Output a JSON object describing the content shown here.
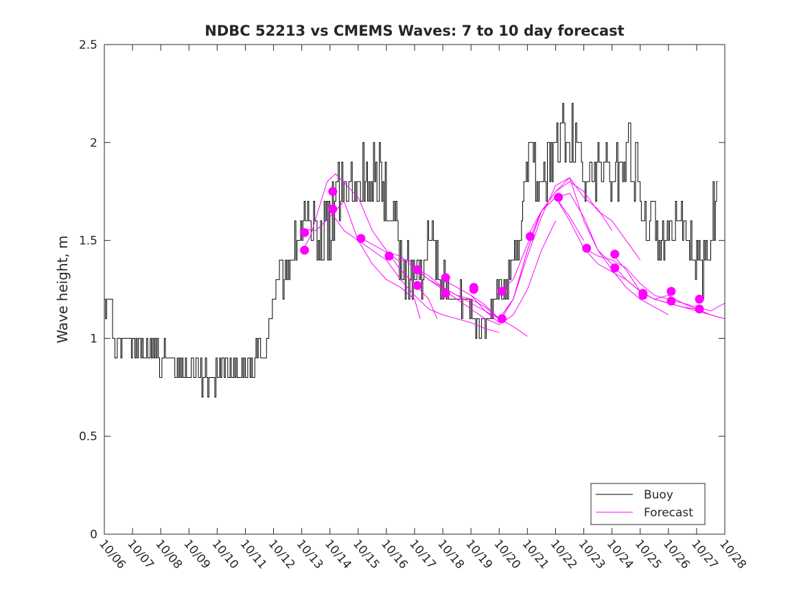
{
  "chart_data": {
    "type": "line",
    "title": "NDBC 52213 vs CMEMS Waves: 7 to 10 day forecast",
    "xlabel": "",
    "ylabel": "Wave height, m",
    "xlim": [
      0,
      22
    ],
    "ylim": [
      0,
      2.5
    ],
    "x_tick_labels": [
      "10/06",
      "10/07",
      "10/08",
      "10/09",
      "10/10",
      "10/11",
      "10/12",
      "10/13",
      "10/14",
      "10/15",
      "10/16",
      "10/17",
      "10/18",
      "10/19",
      "10/20",
      "10/21",
      "10/22",
      "10/23",
      "10/24",
      "10/25",
      "10/26",
      "10/27",
      "10/28"
    ],
    "y_ticks": [
      0,
      0.5,
      1,
      1.5,
      2,
      2.5
    ],
    "y_tick_labels": [
      "0",
      "0.5",
      "1",
      "1.5",
      "2",
      "2.5"
    ],
    "x_units": "days since 10/06 00:00",
    "legend": {
      "position": "bottom-right",
      "entries": [
        {
          "label": "Buoy",
          "color": "#000000"
        },
        {
          "label": "Forecast",
          "color": "#ff00ff"
        }
      ]
    },
    "colors": {
      "buoy": "#000000",
      "forecast": "#ff00ff",
      "axes": "#262626"
    },
    "buoy_anchors": [
      [
        0,
        1.2
      ],
      [
        0.2,
        1.2
      ],
      [
        0.35,
        0.95
      ],
      [
        0.6,
        0.95
      ],
      [
        0.9,
        1.0
      ],
      [
        1.2,
        0.95
      ],
      [
        1.5,
        0.9
      ],
      [
        1.8,
        0.95
      ],
      [
        2.0,
        0.9
      ],
      [
        2.3,
        0.87
      ],
      [
        2.6,
        0.85
      ],
      [
        3.0,
        0.82
      ],
      [
        3.3,
        0.82
      ],
      [
        3.5,
        0.8
      ],
      [
        3.7,
        0.78
      ],
      [
        4.0,
        0.82
      ],
      [
        4.4,
        0.85
      ],
      [
        4.8,
        0.85
      ],
      [
        5.2,
        0.85
      ],
      [
        5.6,
        0.95
      ],
      [
        5.8,
        1.05
      ],
      [
        6.0,
        1.2
      ],
      [
        6.3,
        1.35
      ],
      [
        6.6,
        1.45
      ],
      [
        6.9,
        1.55
      ],
      [
        7.2,
        1.55
      ],
      [
        7.5,
        1.55
      ],
      [
        7.8,
        1.5
      ],
      [
        8.0,
        1.55
      ],
      [
        8.3,
        1.75
      ],
      [
        8.6,
        1.8
      ],
      [
        9.0,
        1.8
      ],
      [
        9.4,
        1.85
      ],
      [
        9.7,
        1.85
      ],
      [
        10.0,
        1.7
      ],
      [
        10.3,
        1.55
      ],
      [
        10.6,
        1.35
      ],
      [
        11.0,
        1.3
      ],
      [
        11.3,
        1.4
      ],
      [
        11.6,
        1.45
      ],
      [
        11.9,
        1.35
      ],
      [
        12.2,
        1.25
      ],
      [
        12.6,
        1.2
      ],
      [
        12.9,
        1.15
      ],
      [
        13.1,
        1.05
      ],
      [
        13.3,
        1.02
      ],
      [
        13.6,
        1.1
      ],
      [
        14.0,
        1.25
      ],
      [
        14.2,
        1.3
      ],
      [
        14.4,
        1.35
      ],
      [
        14.6,
        1.45
      ],
      [
        14.8,
        1.65
      ],
      [
        15.0,
        1.85
      ],
      [
        15.3,
        1.85
      ],
      [
        15.6,
        1.85
      ],
      [
        16.0,
        1.95
      ],
      [
        16.3,
        2.05
      ],
      [
        16.6,
        2.0
      ],
      [
        17.0,
        1.8
      ],
      [
        17.3,
        1.8
      ],
      [
        17.6,
        1.9
      ],
      [
        18.0,
        1.8
      ],
      [
        18.3,
        1.9
      ],
      [
        18.6,
        2.0
      ],
      [
        18.9,
        1.8
      ],
      [
        19.2,
        1.6
      ],
      [
        19.5,
        1.55
      ],
      [
        19.8,
        1.5
      ],
      [
        20.2,
        1.5
      ],
      [
        20.5,
        1.5
      ],
      [
        20.8,
        1.45
      ],
      [
        21.0,
        1.4
      ],
      [
        21.2,
        1.3
      ],
      [
        21.5,
        1.55
      ],
      [
        21.75,
        1.8
      ]
    ],
    "forecast_series": [
      {
        "name": "Forecast 1",
        "x": [
          7.0,
          7.5,
          8.0,
          8.5,
          9.0,
          9.5,
          10.0,
          10.5,
          11.0,
          11.2
        ],
        "y": [
          1.56,
          1.55,
          1.62,
          1.7,
          1.5,
          1.38,
          1.3,
          1.26,
          1.2,
          1.1
        ]
      },
      {
        "name": "Forecast 2",
        "x": [
          7.0,
          7.3,
          7.6,
          7.9,
          8.2,
          8.6,
          9.0,
          9.5,
          10.0,
          10.5,
          11.0,
          11.5,
          11.8
        ],
        "y": [
          1.44,
          1.52,
          1.66,
          1.8,
          1.84,
          1.78,
          1.72,
          1.55,
          1.45,
          1.35,
          1.28,
          1.2,
          1.1
        ]
      },
      {
        "name": "Forecast 3",
        "x": [
          8.0,
          8.5,
          9.0,
          9.5,
          10.0,
          10.5,
          11.0,
          11.5,
          12.0,
          12.5,
          13.0,
          13.5,
          14.0
        ],
        "y": [
          1.65,
          1.55,
          1.5,
          1.45,
          1.4,
          1.3,
          1.22,
          1.15,
          1.12,
          1.1,
          1.08,
          1.05,
          1.03
        ]
      },
      {
        "name": "Forecast 4",
        "x": [
          9.0,
          9.5,
          10.0,
          10.5,
          11.0,
          11.5,
          12.0,
          12.5,
          13.0,
          13.5,
          14.0,
          14.5,
          15.0
        ],
        "y": [
          1.52,
          1.48,
          1.44,
          1.42,
          1.36,
          1.3,
          1.26,
          1.22,
          1.18,
          1.14,
          1.1,
          1.06,
          1.01
        ]
      },
      {
        "name": "Forecast 5",
        "x": [
          10.0,
          10.4,
          10.8,
          11.1,
          11.5,
          12.0,
          12.5,
          13.0,
          13.5,
          14.0,
          14.5,
          15.0,
          15.5,
          16.0
        ],
        "y": [
          1.44,
          1.4,
          1.4,
          1.35,
          1.3,
          1.25,
          1.2,
          1.15,
          1.1,
          1.07,
          1.12,
          1.25,
          1.45,
          1.6
        ]
      },
      {
        "name": "Forecast 6",
        "x": [
          11.0,
          11.5,
          12.0,
          12.5,
          13.0,
          13.5,
          14.0,
          14.5,
          15.0,
          15.5,
          16.0,
          16.5,
          17.0
        ],
        "y": [
          1.36,
          1.32,
          1.26,
          1.22,
          1.2,
          1.16,
          1.1,
          1.2,
          1.45,
          1.65,
          1.72,
          1.62,
          1.5
        ]
      },
      {
        "name": "Forecast 7",
        "x": [
          12.0,
          12.5,
          13.0,
          13.5,
          14.0,
          14.5,
          15.0,
          15.5,
          16.0,
          16.5,
          17.0,
          17.5,
          18.0
        ],
        "y": [
          1.3,
          1.26,
          1.22,
          1.17,
          1.1,
          1.2,
          1.42,
          1.62,
          1.78,
          1.82,
          1.72,
          1.66,
          1.55
        ]
      },
      {
        "name": "Forecast 8",
        "x": [
          13.0,
          13.5,
          14.0,
          14.5,
          15.0,
          15.5,
          16.0,
          16.5,
          17.0,
          17.5,
          18.0,
          18.5,
          19.0
        ],
        "y": [
          1.22,
          1.14,
          1.08,
          1.2,
          1.45,
          1.65,
          1.75,
          1.8,
          1.75,
          1.65,
          1.6,
          1.5,
          1.4
        ]
      },
      {
        "name": "Forecast 9",
        "x": [
          14.0,
          14.5,
          15.0,
          15.5,
          16.0,
          16.5,
          17.0,
          17.5,
          18.0,
          18.5,
          19.0,
          19.5,
          20.0
        ],
        "y": [
          1.24,
          1.3,
          1.48,
          1.65,
          1.75,
          1.82,
          1.6,
          1.45,
          1.35,
          1.26,
          1.2,
          1.16,
          1.12
        ]
      },
      {
        "name": "Forecast 10",
        "x": [
          15.0,
          15.5,
          16.0,
          16.5,
          17.0,
          17.5,
          18.0,
          18.5,
          19.0,
          19.5,
          20.0,
          20.5,
          21.0
        ],
        "y": [
          1.52,
          1.65,
          1.72,
          1.74,
          1.62,
          1.45,
          1.38,
          1.3,
          1.24,
          1.2,
          1.18,
          1.16,
          1.15
        ]
      },
      {
        "name": "Forecast 11",
        "x": [
          16.0,
          16.5,
          17.0,
          17.5,
          18.0,
          18.5,
          19.0,
          19.5,
          20.0,
          20.5,
          21.0,
          21.5,
          22.0
        ],
        "y": [
          1.72,
          1.6,
          1.46,
          1.38,
          1.34,
          1.3,
          1.24,
          1.2,
          1.18,
          1.16,
          1.14,
          1.12,
          1.1
        ]
      },
      {
        "name": "Forecast 12",
        "x": [
          17.0,
          17.5,
          18.0,
          18.5,
          19.0,
          19.5,
          20.0,
          20.5,
          21.0,
          21.5,
          22.0
        ],
        "y": [
          1.46,
          1.42,
          1.4,
          1.36,
          1.28,
          1.22,
          1.2,
          1.18,
          1.15,
          1.12,
          1.1
        ]
      },
      {
        "name": "Forecast 13",
        "x": [
          18.0,
          18.5,
          19.0,
          19.5,
          20.0,
          20.5,
          21.0,
          21.5,
          22.0
        ],
        "y": [
          1.43,
          1.35,
          1.24,
          1.2,
          1.22,
          1.18,
          1.16,
          1.14,
          1.18
        ]
      }
    ],
    "forecast_markers": [
      {
        "x": 7.1,
        "y": 1.54
      },
      {
        "x": 7.1,
        "y": 1.45
      },
      {
        "x": 8.1,
        "y": 1.75
      },
      {
        "x": 8.1,
        "y": 1.66
      },
      {
        "x": 9.1,
        "y": 1.51
      },
      {
        "x": 10.1,
        "y": 1.42
      },
      {
        "x": 11.1,
        "y": 1.35
      },
      {
        "x": 11.1,
        "y": 1.27
      },
      {
        "x": 12.1,
        "y": 1.31
      },
      {
        "x": 12.1,
        "y": 1.23
      },
      {
        "x": 13.1,
        "y": 1.26
      },
      {
        "x": 13.1,
        "y": 1.25
      },
      {
        "x": 14.1,
        "y": 1.24
      },
      {
        "x": 14.1,
        "y": 1.1
      },
      {
        "x": 15.1,
        "y": 1.52
      },
      {
        "x": 16.1,
        "y": 1.72
      },
      {
        "x": 17.1,
        "y": 1.46
      },
      {
        "x": 18.1,
        "y": 1.43
      },
      {
        "x": 18.1,
        "y": 1.36
      },
      {
        "x": 19.1,
        "y": 1.23
      },
      {
        "x": 19.1,
        "y": 1.22
      },
      {
        "x": 20.1,
        "y": 1.24
      },
      {
        "x": 20.1,
        "y": 1.19
      },
      {
        "x": 21.1,
        "y": 1.2
      },
      {
        "x": 21.1,
        "y": 1.15
      }
    ]
  }
}
